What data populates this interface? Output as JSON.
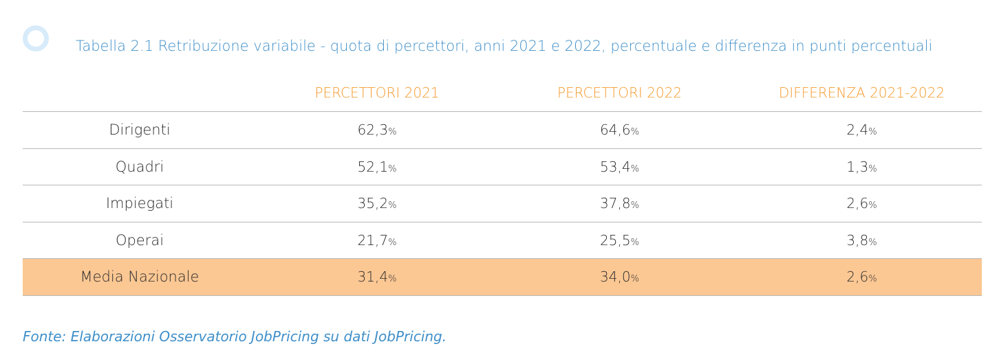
{
  "caption": "Tabella 2.1 Retribuzione variabile - quota di percettori, anni 2021 e 2022, percentuale e differenza in punti percentuali",
  "colors": {
    "caption": "#3f8fc9",
    "header": "#f59a2c",
    "highlight_row": "#fbc793",
    "circle_marker": "#d7ebfa",
    "rule": "#b8b8b8"
  },
  "table": {
    "headers": [
      "",
      "PERCETTORI 2021",
      "PERCETTORI 2022",
      "DIFFERENZA 2021-2022"
    ],
    "rows": [
      {
        "label": "Dirigenti",
        "v2021": "62,3",
        "v2022": "64,6",
        "diff": "2,4",
        "unit": "%"
      },
      {
        "label": "Quadri",
        "v2021": "52,1",
        "v2022": "53,4",
        "diff": "1,3",
        "unit": "%"
      },
      {
        "label": "Impiegati",
        "v2021": "35,2",
        "v2022": "37,8",
        "diff": "2,6",
        "unit": "%"
      },
      {
        "label": "Operai",
        "v2021": "21,7",
        "v2022": "25,5",
        "diff": "3,8",
        "unit": "%"
      },
      {
        "label": "Media Nazionale",
        "v2021": "31,4",
        "v2022": "34,0",
        "diff": "2,6",
        "unit": "%",
        "highlight": true
      }
    ]
  },
  "source": "Fonte: Elaborazioni Osservatorio JobPricing su dati JobPricing."
}
